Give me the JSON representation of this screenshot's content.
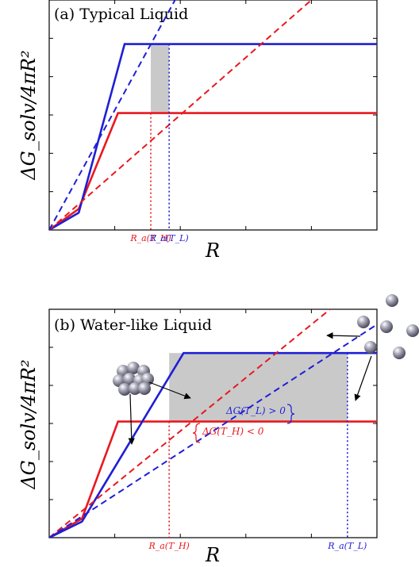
{
  "colors": {
    "red": "#e8191f",
    "blue": "#1f1fd6",
    "shade": "#c9c9c9",
    "ball": "#8e8e9e"
  },
  "chart_data": [
    {
      "type": "line",
      "title": "(a) Typical Liquid",
      "xlabel": "R",
      "ylabel": "ΔG_solv/4πR²",
      "xlim": [
        0,
        5
      ],
      "ylim": [
        0,
        6
      ],
      "grid": false,
      "series": [
        {
          "color": "red",
          "dash": false,
          "points": [
            [
              0,
              0
            ],
            [
              0.45,
              0.55
            ],
            [
              1.05,
              3.05
            ],
            [
              5,
              3.05
            ]
          ]
        },
        {
          "color": "blue",
          "dash": false,
          "points": [
            [
              0,
              0
            ],
            [
              0.45,
              0.45
            ],
            [
              1.15,
              4.85
            ],
            [
              5,
              4.85
            ]
          ]
        },
        {
          "color": "red",
          "dash": true,
          "points": [
            [
              0,
              0
            ],
            [
              5,
              7.5
            ]
          ]
        },
        {
          "color": "blue",
          "dash": true,
          "points": [
            [
              0,
              0
            ],
            [
              2.4,
              7.5
            ]
          ]
        }
      ],
      "shaded": [
        1.55,
        1.83,
        3.05,
        4.85
      ],
      "markers": [
        {
          "x": 1.55,
          "color": "red",
          "label": "R_a(T_H)"
        },
        {
          "x": 1.83,
          "color": "blue",
          "label": "R_a(T_L)"
        }
      ],
      "annotations": []
    },
    {
      "type": "line",
      "title": "(b) Water-like Liquid",
      "xlabel": "R",
      "ylabel": "ΔG_solv/4πR²",
      "xlim": [
        0,
        5
      ],
      "ylim": [
        0,
        6
      ],
      "grid": false,
      "series": [
        {
          "color": "red",
          "dash": false,
          "points": [
            [
              0,
              0
            ],
            [
              0.5,
              0.5
            ],
            [
              1.05,
              3.05
            ],
            [
              5,
              3.05
            ]
          ]
        },
        {
          "color": "blue",
          "dash": false,
          "points": [
            [
              0,
              0
            ],
            [
              0.5,
              0.42
            ],
            [
              2.05,
              4.85
            ],
            [
              5,
              4.85
            ]
          ]
        },
        {
          "color": "red",
          "dash": true,
          "points": [
            [
              0,
              0
            ],
            [
              5,
              7.0
            ]
          ]
        },
        {
          "color": "blue",
          "dash": true,
          "points": [
            [
              0,
              0
            ],
            [
              5,
              5.6
            ]
          ]
        }
      ],
      "shaded": [
        1.83,
        4.55,
        3.05,
        4.85
      ],
      "markers": [
        {
          "x": 1.83,
          "color": "red",
          "label": "R_a(T_H)"
        },
        {
          "x": 4.55,
          "color": "blue",
          "label": "R_a(T_L)"
        }
      ],
      "annotations": [
        {
          "text": "ΔG(T_L) > 0",
          "color": "blue"
        },
        {
          "text": "ΔG(T_H) < 0",
          "color": "red"
        }
      ]
    }
  ]
}
